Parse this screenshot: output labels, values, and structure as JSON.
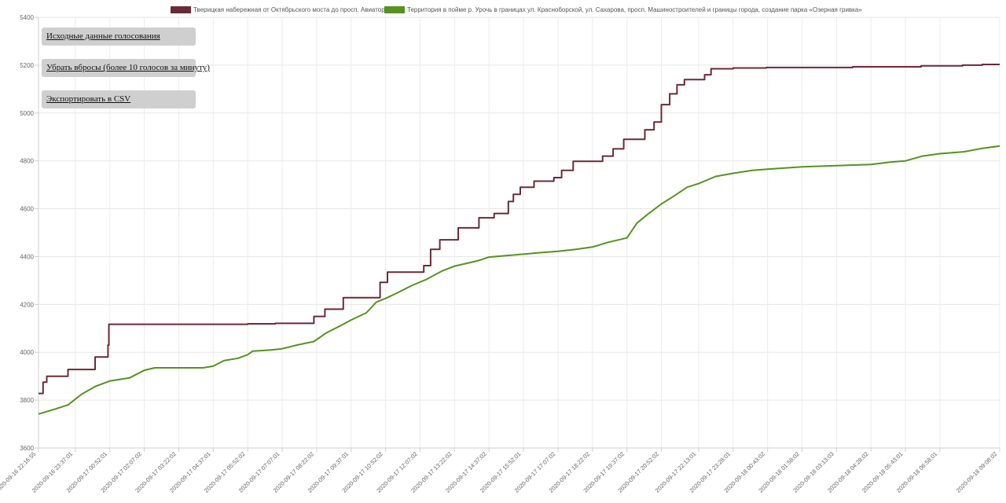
{
  "buttons": {
    "raw_data": "Исходные данные голосования",
    "remove_outliers": "Убрать вбросы (более 10 голосов за минуту)",
    "export_csv": "Экспортировать в CSV"
  },
  "chart_data": {
    "type": "line",
    "title": "",
    "xlabel": "",
    "ylabel": "",
    "ylim": [
      3600,
      5400
    ],
    "yticks": [
      3600,
      3800,
      4000,
      4200,
      4400,
      4600,
      4800,
      5000,
      5200,
      5400
    ],
    "xlim": [
      "2020-09-16 22:16:55",
      "2020-09-18 09:08:02"
    ],
    "xticks": [
      "2020-09-16 22:16:55",
      "2020-09-16 23:37:01",
      "2020-09-17 00:52:01",
      "2020-09-17 02:07:02",
      "2020-09-17 03:22:02",
      "2020-09-17 04:37:01",
      "2020-09-17 05:52:02",
      "2020-09-17 07:07:01",
      "2020-09-17 08:22:02",
      "2020-09-17 09:37:01",
      "2020-09-17 10:52:02",
      "2020-09-17 12:07:02",
      "2020-09-17 13:22:02",
      "2020-09-17 14:37:02",
      "2020-09-17 15:52:01",
      "2020-09-17 17:07:02",
      "2020-09-17 18:22:02",
      "2020-09-17 19:37:02",
      "2020-09-17 20:52:02",
      "2020-09-17 22:13:01",
      "2020-09-17 23:28:01",
      "2020-09-18 00:43:02",
      "2020-09-18 01:58:02",
      "2020-09-18 03:13:03",
      "2020-09-18 04:28:02",
      "2020-09-18 05:43:01",
      "2020-09-18 06:58:01",
      "2020-09-18 09:08:02"
    ],
    "grid": true,
    "legend_position": "top",
    "series": [
      {
        "name": "Тверицкая набережная от Октябрьского моста до просп. Авиаторов",
        "color": "#6b2a38",
        "step": true,
        "points": [
          [
            "2020-09-16 22:16:55",
            3828
          ],
          [
            "2020-09-16 22:26:55",
            3875
          ],
          [
            "2020-09-16 22:34:55",
            3900
          ],
          [
            "2020-09-16 23:21:01",
            3928
          ],
          [
            "2020-09-17 00:20:01",
            3980
          ],
          [
            "2020-09-17 00:48:01",
            4030
          ],
          [
            "2020-09-17 00:50:01",
            4117
          ],
          [
            "2020-09-17 05:52:02",
            4119
          ],
          [
            "2020-09-17 06:52:01",
            4121
          ],
          [
            "2020-09-17 08:16:02",
            4150
          ],
          [
            "2020-09-17 08:40:02",
            4180
          ],
          [
            "2020-09-17 09:20:01",
            4228
          ],
          [
            "2020-09-17 10:40:02",
            4292
          ],
          [
            "2020-09-17 10:56:02",
            4335
          ],
          [
            "2020-09-17 12:15:02",
            4362
          ],
          [
            "2020-09-17 12:30:02",
            4430
          ],
          [
            "2020-09-17 12:50:02",
            4470
          ],
          [
            "2020-09-17 13:30:02",
            4520
          ],
          [
            "2020-09-17 14:15:02",
            4562
          ],
          [
            "2020-09-17 14:48:02",
            4580
          ],
          [
            "2020-09-17 15:19:01",
            4630
          ],
          [
            "2020-09-17 15:30:01",
            4660
          ],
          [
            "2020-09-17 15:45:01",
            4690
          ],
          [
            "2020-09-17 16:15:02",
            4715
          ],
          [
            "2020-09-17 16:58:02",
            4730
          ],
          [
            "2020-09-17 17:15:02",
            4760
          ],
          [
            "2020-09-17 17:40:02",
            4798
          ],
          [
            "2020-09-17 18:44:02",
            4820
          ],
          [
            "2020-09-17 19:07:02",
            4850
          ],
          [
            "2020-09-17 19:30:02",
            4890
          ],
          [
            "2020-09-17 20:16:02",
            4930
          ],
          [
            "2020-09-17 20:36:02",
            4962
          ],
          [
            "2020-09-17 20:52:02",
            5035
          ],
          [
            "2020-09-17 21:10:01",
            5080
          ],
          [
            "2020-09-17 21:26:01",
            5118
          ],
          [
            "2020-09-17 21:42:01",
            5140
          ],
          [
            "2020-09-17 22:26:01",
            5160
          ],
          [
            "2020-09-17 22:40:01",
            5185
          ],
          [
            "2020-09-17 23:28:01",
            5188
          ],
          [
            "2020-09-18 00:40:02",
            5190
          ],
          [
            "2020-09-18 03:48:02",
            5193
          ],
          [
            "2020-09-18 06:17:01",
            5197
          ],
          [
            "2020-09-18 07:47:01",
            5200
          ],
          [
            "2020-09-18 08:30:02",
            5203
          ],
          [
            "2020-09-18 09:08:02",
            5203
          ]
        ]
      },
      {
        "name": "Территория в пойме р. Урочь в границах ул. Красноборской, ул. Сахарова, просп. Машиностроителей и границы города, создание парка «Озерная гривка»",
        "color": "#55931e",
        "step": false,
        "points": [
          [
            "2020-09-16 22:16:55",
            3742
          ],
          [
            "2020-09-16 22:51:55",
            3762
          ],
          [
            "2020-09-16 23:21:01",
            3780
          ],
          [
            "2020-09-16 23:51:01",
            3825
          ],
          [
            "2020-09-17 00:21:01",
            3858
          ],
          [
            "2020-09-17 00:52:01",
            3880
          ],
          [
            "2020-09-17 01:35:02",
            3893
          ],
          [
            "2020-09-17 02:07:02",
            3925
          ],
          [
            "2020-09-17 02:30:02",
            3935
          ],
          [
            "2020-09-17 04:15:01",
            3935
          ],
          [
            "2020-09-17 04:37:01",
            3942
          ],
          [
            "2020-09-17 05:00:02",
            3965
          ],
          [
            "2020-09-17 05:31:02",
            3975
          ],
          [
            "2020-09-17 05:52:02",
            3990
          ],
          [
            "2020-09-17 06:03:02",
            4005
          ],
          [
            "2020-09-17 06:43:01",
            4010
          ],
          [
            "2020-09-17 07:07:01",
            4015
          ],
          [
            "2020-09-17 07:39:01",
            4030
          ],
          [
            "2020-09-17 08:16:02",
            4045
          ],
          [
            "2020-09-17 08:42:02",
            4080
          ],
          [
            "2020-09-17 09:13:01",
            4110
          ],
          [
            "2020-09-17 09:37:01",
            4135
          ],
          [
            "2020-09-17 10:10:01",
            4165
          ],
          [
            "2020-09-17 10:32:02",
            4210
          ],
          [
            "2020-09-17 10:52:02",
            4225
          ],
          [
            "2020-09-17 11:14:02",
            4245
          ],
          [
            "2020-09-17 11:50:02",
            4280
          ],
          [
            "2020-09-17 12:21:02",
            4305
          ],
          [
            "2020-09-17 12:55:02",
            4340
          ],
          [
            "2020-09-17 13:22:02",
            4360
          ],
          [
            "2020-09-17 14:12:02",
            4382
          ],
          [
            "2020-09-17 14:37:02",
            4398
          ],
          [
            "2020-09-17 15:52:01",
            4410
          ],
          [
            "2020-09-17 16:25:01",
            4416
          ],
          [
            "2020-09-17 17:07:02",
            4422
          ],
          [
            "2020-09-17 17:46:02",
            4430
          ],
          [
            "2020-09-17 18:22:02",
            4440
          ],
          [
            "2020-09-17 18:57:02",
            4460
          ],
          [
            "2020-09-17 19:37:02",
            4478
          ],
          [
            "2020-09-17 19:59:02",
            4540
          ],
          [
            "2020-09-17 20:21:02",
            4575
          ],
          [
            "2020-09-17 20:52:02",
            4620
          ],
          [
            "2020-09-17 21:21:01",
            4655
          ],
          [
            "2020-09-17 21:48:01",
            4690
          ],
          [
            "2020-09-17 22:13:01",
            4705
          ],
          [
            "2020-09-17 22:50:01",
            4735
          ],
          [
            "2020-09-17 23:28:01",
            4748
          ],
          [
            "2020-09-18 00:10:02",
            4760
          ],
          [
            "2020-09-18 00:43:02",
            4765
          ],
          [
            "2020-09-18 01:58:02",
            4775
          ],
          [
            "2020-09-18 03:13:03",
            4780
          ],
          [
            "2020-09-18 04:28:02",
            4785
          ],
          [
            "2020-09-18 05:10:02",
            4795
          ],
          [
            "2020-09-18 05:43:01",
            4800
          ],
          [
            "2020-09-18 06:20:01",
            4820
          ],
          [
            "2020-09-18 06:58:01",
            4830
          ],
          [
            "2020-09-18 07:50:01",
            4838
          ],
          [
            "2020-09-18 08:30:01",
            4852
          ],
          [
            "2020-09-18 09:08:02",
            4862
          ]
        ]
      }
    ]
  }
}
